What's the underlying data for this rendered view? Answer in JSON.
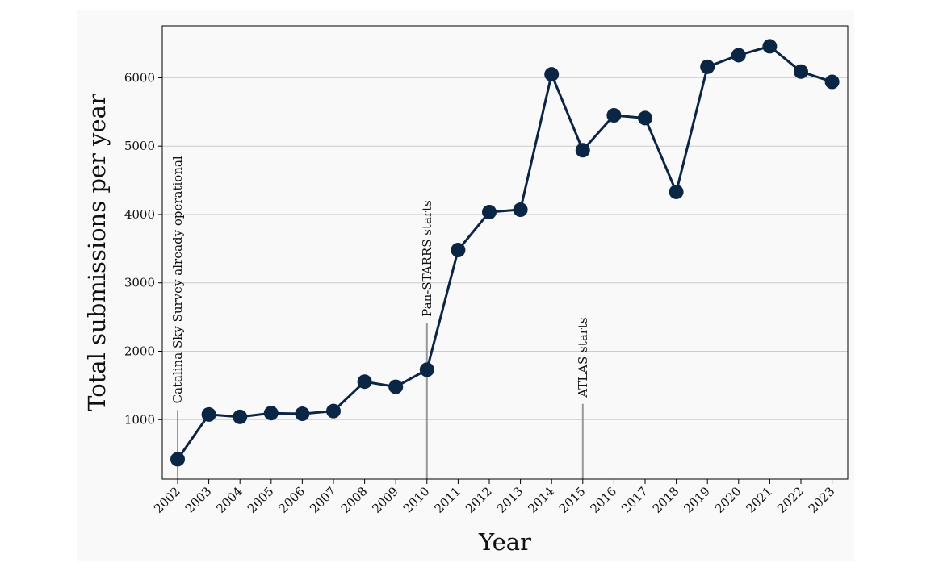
{
  "chart_data": {
    "type": "line",
    "title": "",
    "xlabel": "Year",
    "ylabel": "Total submissions per year",
    "categories": [
      "2002",
      "2003",
      "2004",
      "2005",
      "2006",
      "2007",
      "2008",
      "2009",
      "2010",
      "2011",
      "2012",
      "2013",
      "2014",
      "2015",
      "2016",
      "2017",
      "2018",
      "2019",
      "2020",
      "2021",
      "2022",
      "2023"
    ],
    "series": [
      {
        "values": [
          420,
          1075,
          1040,
          1095,
          1085,
          1125,
          1555,
          1480,
          1730,
          3480,
          4035,
          4070,
          6050,
          4940,
          5450,
          5410,
          4330,
          6160,
          6330,
          6460,
          6090,
          5940
        ]
      }
    ],
    "yticks": [
      1000,
      2000,
      3000,
      4000,
      5000,
      6000
    ],
    "ylim": [
      130,
      6760
    ],
    "grid": "horizontal",
    "line_color": "#0b2545",
    "annotations": [
      {
        "x": "2002",
        "text": "Catalina Sky Survey already operational",
        "y_top": 1140
      },
      {
        "x": "2010",
        "text": "Pan-STARRS starts",
        "y_top": 2410
      },
      {
        "x": "2015",
        "text": "ATLAS starts",
        "y_top": 1230
      }
    ]
  }
}
